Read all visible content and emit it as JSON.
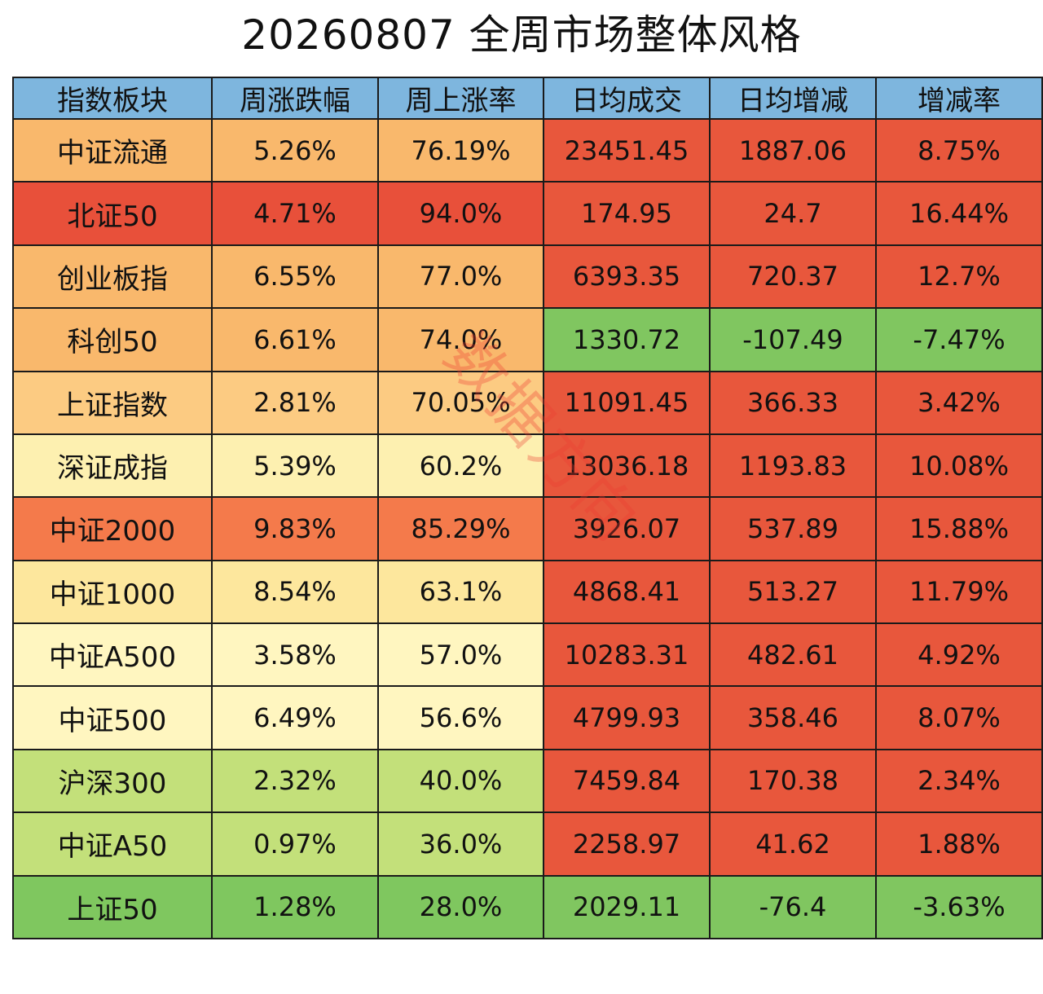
{
  "title": "20260807 全周市场整体风格",
  "watermark": "数据方向",
  "chart_data": {
    "type": "table",
    "title": "20260807 全周市场整体风格",
    "columns": [
      "指数板块",
      "周涨跌幅",
      "周上涨率",
      "日均成交",
      "日均增减",
      "增减率"
    ],
    "rows": [
      [
        "中证流通",
        "5.26%",
        "76.19%",
        "23451.45",
        "1887.06",
        "8.75%"
      ],
      [
        "北证50",
        "4.71%",
        "94.0%",
        "174.95",
        "24.7",
        "16.44%"
      ],
      [
        "创业板指",
        "6.55%",
        "77.0%",
        "6393.35",
        "720.37",
        "12.7%"
      ],
      [
        "科创50",
        "6.61%",
        "74.0%",
        "1330.72",
        "-107.49",
        "-7.47%"
      ],
      [
        "上证指数",
        "2.81%",
        "70.05%",
        "11091.45",
        "366.33",
        "3.42%"
      ],
      [
        "深证成指",
        "5.39%",
        "60.2%",
        "13036.18",
        "1193.83",
        "10.08%"
      ],
      [
        "中证2000",
        "9.83%",
        "85.29%",
        "3926.07",
        "537.89",
        "15.88%"
      ],
      [
        "中证1000",
        "8.54%",
        "63.1%",
        "4868.41",
        "513.27",
        "11.79%"
      ],
      [
        "中证A500",
        "3.58%",
        "57.0%",
        "10283.31",
        "482.61",
        "4.92%"
      ],
      [
        "中证500",
        "6.49%",
        "56.6%",
        "4799.93",
        "358.46",
        "8.07%"
      ],
      [
        "沪深300",
        "2.32%",
        "40.0%",
        "7459.84",
        "170.38",
        "2.34%"
      ],
      [
        "中证A50",
        "0.97%",
        "36.0%",
        "2258.97",
        "41.62",
        "1.88%"
      ],
      [
        "上证50",
        "1.28%",
        "28.0%",
        "2029.11",
        "-76.4",
        "-3.63%"
      ]
    ],
    "row_colors": [
      "#f9b86c",
      "#e8503a",
      "#f9b86c",
      "#f9b86c",
      "#fccb82",
      "#fdf0b0",
      "#f47a4b",
      "#fde79d",
      "#fff6c0",
      "#fff6c0",
      "#c3e07a",
      "#c3e07a",
      "#7fc75f"
    ],
    "header_color": "#7eb6de",
    "positive_color": "#e8573c",
    "negative_color": "#80c660"
  }
}
